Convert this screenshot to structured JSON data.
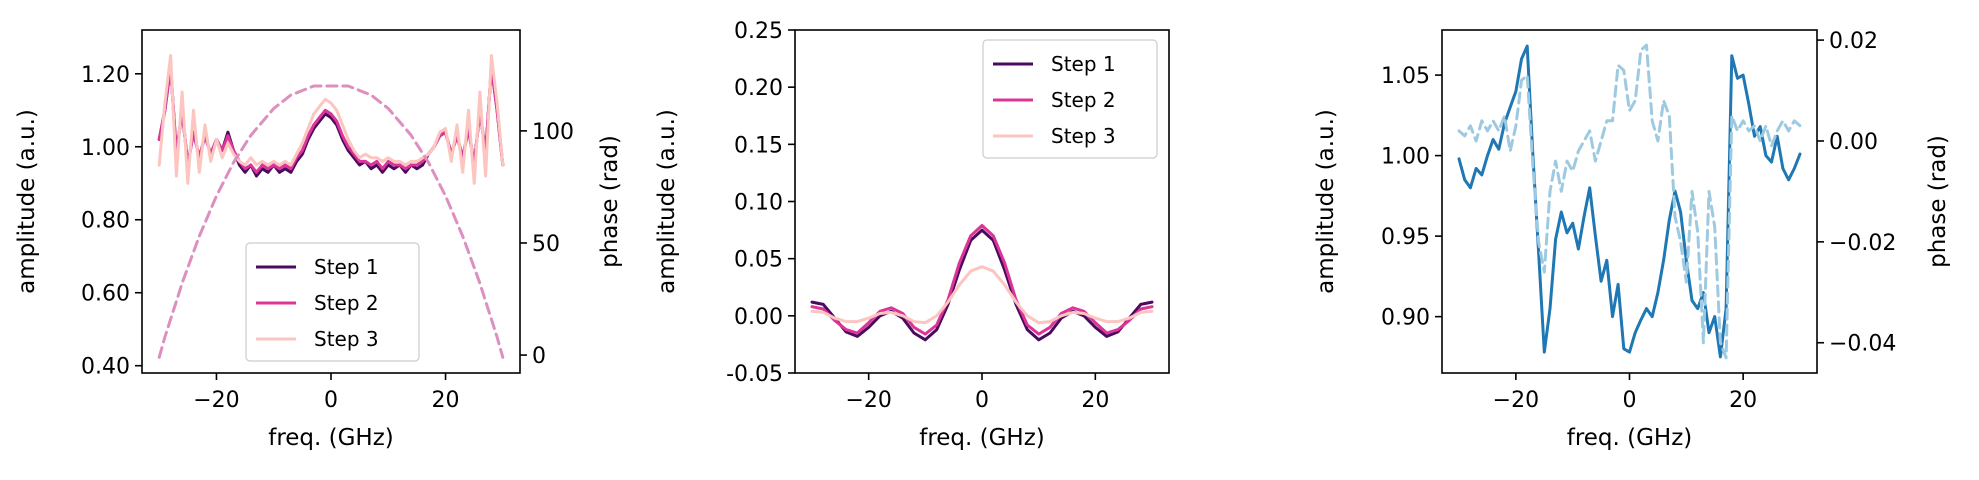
{
  "chart_data": [
    {
      "type": "line",
      "xlabel": "freq. (GHz)",
      "ylabel": "amplitude (a.u.)",
      "y2label": "phase (rad)",
      "xlim": [
        -33,
        33
      ],
      "ylim": [
        0.38,
        1.32
      ],
      "y2lim": [
        -8,
        145
      ],
      "xticks": [
        -20,
        0,
        20
      ],
      "xtick_labels": [
        "−20",
        "0",
        "20"
      ],
      "yticks": [
        0.4,
        0.6,
        0.8,
        1.0,
        1.2
      ],
      "ytick_labels": [
        "0.40",
        "0.60",
        "0.80",
        "1.00",
        "1.20"
      ],
      "y2ticks": [
        0,
        50,
        100
      ],
      "y2tick_labels": [
        "0",
        "50",
        "100"
      ],
      "legend": {
        "position": "lower-center",
        "entries": [
          "Step 1",
          "Step 2",
          "Step 3"
        ]
      },
      "x": [
        -30,
        -29,
        -28,
        -27,
        -26,
        -25,
        -24,
        -23,
        -22,
        -21,
        -20,
        -19,
        -18,
        -17,
        -16,
        -15,
        -14,
        -13,
        -12,
        -11,
        -10,
        -9,
        -8,
        -7,
        -6,
        -5,
        -4,
        -3,
        -2,
        -1,
        0,
        1,
        2,
        3,
        4,
        5,
        6,
        7,
        8,
        9,
        10,
        11,
        12,
        13,
        14,
        15,
        16,
        17,
        18,
        19,
        20,
        21,
        22,
        23,
        24,
        25,
        26,
        27,
        28,
        29,
        30
      ],
      "series": [
        {
          "name": "Step 1",
          "color": "#4b0a5f",
          "y_axis": "left",
          "style": "solid",
          "values": [
            1.02,
            1.1,
            1.22,
            0.98,
            1.1,
            0.95,
            1.04,
            0.97,
            1.03,
            0.98,
            1.02,
            0.99,
            1.04,
            0.99,
            0.95,
            0.93,
            0.95,
            0.92,
            0.94,
            0.93,
            0.95,
            0.93,
            0.94,
            0.93,
            0.96,
            0.98,
            1.02,
            1.05,
            1.07,
            1.09,
            1.08,
            1.06,
            1.02,
            0.99,
            0.97,
            0.95,
            0.96,
            0.94,
            0.95,
            0.93,
            0.95,
            0.94,
            0.95,
            0.93,
            0.95,
            0.94,
            0.95,
            0.98,
            1.0,
            1.03,
            1.04,
            0.98,
            1.03,
            0.97,
            1.05,
            0.95,
            1.1,
            0.98,
            1.22,
            1.1,
            0.95
          ]
        },
        {
          "name": "Step 2",
          "color": "#dd3497",
          "y_axis": "left",
          "style": "solid",
          "values": [
            1.02,
            1.1,
            1.22,
            0.98,
            1.1,
            0.95,
            1.04,
            0.97,
            1.03,
            0.98,
            1.02,
            0.99,
            1.03,
            0.99,
            0.96,
            0.94,
            0.95,
            0.93,
            0.95,
            0.94,
            0.95,
            0.94,
            0.95,
            0.94,
            0.97,
            0.99,
            1.03,
            1.06,
            1.08,
            1.1,
            1.09,
            1.07,
            1.03,
            1.0,
            0.98,
            0.96,
            0.96,
            0.95,
            0.96,
            0.94,
            0.96,
            0.95,
            0.95,
            0.94,
            0.95,
            0.95,
            0.96,
            0.98,
            1.0,
            1.03,
            1.04,
            0.98,
            1.03,
            0.97,
            1.05,
            0.95,
            1.1,
            0.98,
            1.22,
            1.1,
            0.95
          ]
        },
        {
          "name": "Step 3",
          "color": "#fcc5c0",
          "y_axis": "left",
          "style": "solid",
          "values": [
            0.95,
            1.12,
            1.25,
            0.92,
            1.15,
            0.9,
            1.1,
            0.93,
            1.06,
            0.96,
            1.02,
            0.97,
            1.01,
            0.98,
            0.96,
            0.95,
            0.97,
            0.95,
            0.96,
            0.95,
            0.96,
            0.95,
            0.96,
            0.95,
            0.98,
            1.01,
            1.05,
            1.09,
            1.11,
            1.13,
            1.12,
            1.1,
            1.06,
            1.02,
            0.99,
            0.97,
            0.98,
            0.97,
            0.97,
            0.96,
            0.97,
            0.96,
            0.96,
            0.95,
            0.96,
            0.96,
            0.97,
            0.98,
            1.0,
            1.04,
            1.05,
            0.96,
            1.06,
            0.93,
            1.1,
            0.9,
            1.15,
            0.92,
            1.25,
            1.12,
            0.95
          ]
        },
        {
          "name": "",
          "color": "#dd8fbf",
          "y_axis": "right",
          "style": "dashed",
          "values": [
            -1,
            8,
            16,
            24,
            32,
            39,
            46,
            53,
            59,
            65,
            71,
            76,
            81,
            86,
            90,
            94,
            98,
            101,
            104,
            107,
            110,
            112,
            114,
            116,
            117,
            118,
            119,
            120,
            120,
            120,
            120,
            120,
            120,
            120,
            119,
            118,
            117,
            116,
            114,
            112,
            110,
            107,
            104,
            101,
            98,
            94,
            90,
            86,
            81,
            76,
            71,
            65,
            59,
            53,
            46,
            39,
            32,
            24,
            16,
            8,
            -1
          ]
        }
      ]
    },
    {
      "type": "line",
      "xlabel": "freq. (GHz)",
      "ylabel": "amplitude (a.u.)",
      "xlim": [
        -33,
        33
      ],
      "ylim": [
        -0.05,
        0.25
      ],
      "xticks": [
        -20,
        0,
        20
      ],
      "xtick_labels": [
        "−20",
        "0",
        "20"
      ],
      "yticks": [
        -0.05,
        0.0,
        0.05,
        0.1,
        0.15,
        0.2,
        0.25
      ],
      "ytick_labels": [
        "-0.05",
        "0.00",
        "0.05",
        "0.10",
        "0.15",
        "0.20",
        "0.25"
      ],
      "legend": {
        "position": "top-right",
        "entries": [
          "Step 1",
          "Step 2",
          "Step 3"
        ]
      },
      "x": [
        -30,
        -28,
        -26,
        -24,
        -22,
        -20,
        -18,
        -16,
        -14,
        -12,
        -10,
        -8,
        -6,
        -4,
        -2,
        0,
        2,
        4,
        6,
        8,
        10,
        12,
        14,
        16,
        18,
        20,
        22,
        24,
        26,
        28,
        30
      ],
      "series": [
        {
          "name": "Step 1",
          "color": "#4b0a5f",
          "values": [
            0.012,
            0.01,
            -0.002,
            -0.014,
            -0.018,
            -0.01,
            0.0,
            0.004,
            -0.002,
            -0.015,
            -0.021,
            -0.012,
            0.01,
            0.04,
            0.066,
            0.075,
            0.066,
            0.04,
            0.01,
            -0.012,
            -0.021,
            -0.015,
            -0.002,
            0.004,
            0.0,
            -0.01,
            -0.018,
            -0.014,
            -0.002,
            0.01,
            0.012
          ]
        },
        {
          "name": "Step 2",
          "color": "#dd3497",
          "values": [
            0.008,
            0.006,
            -0.004,
            -0.012,
            -0.015,
            -0.006,
            0.004,
            0.007,
            0.002,
            -0.01,
            -0.016,
            -0.008,
            0.014,
            0.046,
            0.07,
            0.079,
            0.07,
            0.046,
            0.014,
            -0.008,
            -0.016,
            -0.01,
            0.002,
            0.007,
            0.004,
            -0.006,
            -0.015,
            -0.012,
            -0.004,
            0.006,
            0.008
          ]
        },
        {
          "name": "Step 3",
          "color": "#fcc5c0",
          "values": [
            0.004,
            0.003,
            -0.002,
            -0.005,
            -0.005,
            -0.002,
            0.002,
            0.003,
            0.0,
            -0.005,
            -0.006,
            0.0,
            0.012,
            0.027,
            0.039,
            0.043,
            0.039,
            0.027,
            0.012,
            0.0,
            -0.006,
            -0.005,
            0.0,
            0.003,
            0.002,
            -0.002,
            -0.005,
            -0.005,
            -0.002,
            0.003,
            0.004
          ]
        }
      ]
    },
    {
      "type": "line",
      "xlabel": "freq. (GHz)",
      "ylabel": "amplitude (a.u.)",
      "y2label": "phase (rad)",
      "xlim": [
        -33,
        33
      ],
      "ylim": [
        0.865,
        1.078
      ],
      "y2lim": [
        -0.046,
        0.022
      ],
      "xticks": [
        -20,
        0,
        20
      ],
      "xtick_labels": [
        "−20",
        "0",
        "20"
      ],
      "yticks": [
        0.9,
        0.95,
        1.0,
        1.05
      ],
      "ytick_labels": [
        "0.90",
        "0.95",
        "1.00",
        "1.05"
      ],
      "y2ticks": [
        -0.04,
        -0.02,
        0.0,
        0.02
      ],
      "y2tick_labels": [
        "−0.04",
        "−0.02",
        "0.00",
        "0.02"
      ],
      "series": [
        {
          "name": "",
          "color": "#1f77b4",
          "y_axis": "left",
          "style": "solid",
          "x": [
            -30,
            -29,
            -28,
            -27,
            -26,
            -25,
            -24,
            -23,
            -22,
            -21,
            -20,
            -19,
            -18,
            -17,
            -16,
            -15,
            -14,
            -13,
            -12,
            -11,
            -10,
            -9,
            -8,
            -7,
            -6,
            -5,
            -4,
            -3,
            -2,
            -1,
            0,
            1,
            2,
            3,
            4,
            5,
            6,
            7,
            8,
            9,
            10,
            11,
            12,
            13,
            14,
            15,
            16,
            17,
            18,
            19,
            20,
            21,
            22,
            23,
            24,
            25,
            26,
            27,
            28,
            29,
            30
          ],
          "values": [
            0.998,
            0.985,
            0.98,
            0.992,
            0.988,
            1.0,
            1.01,
            1.004,
            1.02,
            1.03,
            1.04,
            1.06,
            1.068,
            1.0,
            0.94,
            0.878,
            0.905,
            0.948,
            0.965,
            0.952,
            0.958,
            0.942,
            0.962,
            0.98,
            0.95,
            0.922,
            0.935,
            0.9,
            0.92,
            0.88,
            0.878,
            0.89,
            0.898,
            0.905,
            0.9,
            0.915,
            0.935,
            0.96,
            0.978,
            0.965,
            0.935,
            0.91,
            0.905,
            0.915,
            0.89,
            0.9,
            0.875,
            0.905,
            1.062,
            1.048,
            1.05,
            1.032,
            1.012,
            1.018,
            1.0,
            0.996,
            1.012,
            0.992,
            0.985,
            0.992,
            1.001
          ]
        },
        {
          "name": "",
          "color": "#9ecae1",
          "y_axis": "right",
          "style": "dashed",
          "x": [
            -30,
            -29,
            -28,
            -27,
            -26,
            -25,
            -24,
            -23,
            -22,
            -21,
            -20,
            -19,
            -18,
            -17,
            -16,
            -15,
            -14,
            -13,
            -12,
            -11,
            -10,
            -9,
            -8,
            -7,
            -6,
            -5,
            -4,
            -3,
            -2,
            -1,
            0,
            1,
            2,
            3,
            4,
            5,
            6,
            7,
            8,
            9,
            10,
            11,
            12,
            13,
            14,
            15,
            16,
            17,
            18,
            19,
            20,
            21,
            22,
            23,
            24,
            25,
            26,
            27,
            28,
            29,
            30
          ],
          "values": [
            0.002,
            0.001,
            0.003,
            0.0,
            0.004,
            0.002,
            0.004,
            0.002,
            0.005,
            -0.002,
            0.003,
            0.012,
            0.013,
            -0.005,
            -0.02,
            -0.026,
            -0.01,
            -0.004,
            -0.01,
            -0.004,
            -0.006,
            -0.002,
            0.0,
            0.002,
            -0.004,
            0.0,
            0.004,
            0.004,
            0.015,
            0.014,
            0.006,
            0.008,
            0.018,
            0.019,
            0.004,
            0.0,
            0.008,
            0.005,
            -0.015,
            -0.02,
            -0.028,
            -0.01,
            -0.018,
            -0.04,
            -0.01,
            -0.017,
            -0.04,
            -0.043,
            0.005,
            0.002,
            0.004,
            0.002,
            0.003,
            0.0,
            0.003,
            -0.001,
            0.002,
            0.004,
            0.002,
            0.004,
            0.003
          ]
        }
      ]
    }
  ]
}
